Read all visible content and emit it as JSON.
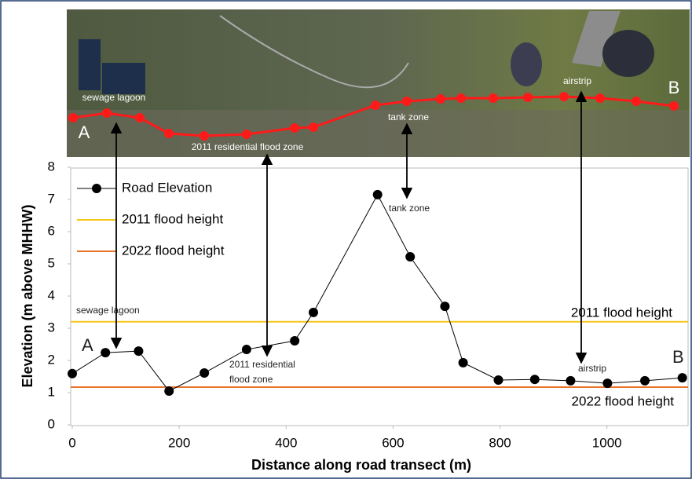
{
  "photo_labels": [
    "sewage lagoon",
    "A",
    "2011 residential flood zone",
    "tank zone",
    "airstrip",
    "B"
  ],
  "chart_data": {
    "type": "line",
    "xlabel": "Distance along road transect (m)",
    "ylabel": "Elevation (m above MHHW)",
    "x": [
      0,
      62,
      124,
      181,
      247,
      326,
      416,
      451,
      571,
      632,
      697,
      731,
      797,
      865,
      932,
      1001,
      1071,
      1141
    ],
    "series": [
      {
        "name": "Road Elevation",
        "color": "#000000",
        "values": [
          1.59,
          2.24,
          2.29,
          1.05,
          1.61,
          2.34,
          2.61,
          3.49,
          7.15,
          5.22,
          3.68,
          1.93,
          1.39,
          1.41,
          1.37,
          1.29,
          1.37,
          1.46
        ]
      }
    ],
    "reference_lines": [
      {
        "name": "2011 flood height",
        "color": "#f5c518",
        "value": 3.2
      },
      {
        "name": "2022 flood height",
        "color": "#e8742c",
        "value": 1.17
      }
    ],
    "annotations": [
      "sewage lagoon",
      "A",
      "2011 residential",
      "flood zone",
      "tank zone",
      "airstrip",
      "B"
    ],
    "xlim": [
      0,
      1140
    ],
    "xticks": [
      0,
      200,
      400,
      600,
      800,
      1000
    ],
    "ylim": [
      0,
      8
    ],
    "yticks": [
      0,
      1,
      2,
      3,
      4,
      5,
      6,
      7,
      8
    ]
  }
}
